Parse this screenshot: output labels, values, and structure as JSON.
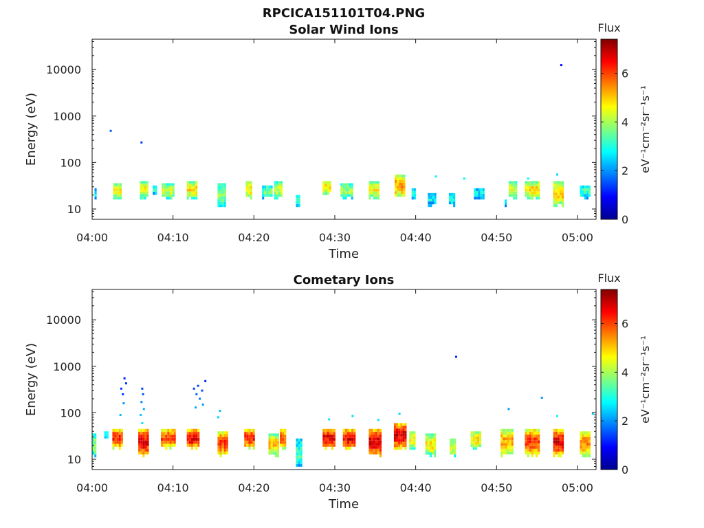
{
  "figure": {
    "filename": "RPCICA151101T04.PNG"
  },
  "colorbar": {
    "title": "Flux",
    "unit_label": "eV⁻¹cm⁻²sr⁻¹s⁻¹",
    "range": [
      0,
      7.4
    ],
    "ticks": [
      "0",
      "2",
      "4",
      "6"
    ],
    "colormap": "jet"
  },
  "chart_data": [
    {
      "type": "heatmap",
      "title": "Solar Wind Ions",
      "xlabel": "Time",
      "ylabel": "Energy (eV)",
      "x_ticks": [
        "04:00",
        "04:10",
        "04:20",
        "04:30",
        "04:40",
        "04:50",
        "05:00"
      ],
      "x_tick_minutes": [
        0,
        10,
        20,
        30,
        40,
        50,
        60
      ],
      "xlim_minutes": [
        0,
        62.3
      ],
      "y_scale": "log",
      "y_ticks": [
        "10",
        "100",
        "1000",
        "10000"
      ],
      "ylim": [
        6,
        45000
      ],
      "value_range": [
        0,
        7.4
      ],
      "grid": false,
      "events": [
        {
          "t": 0.3,
          "dur": 0.3,
          "e": [
            16,
            28
          ],
          "flux": 2.6
        },
        {
          "t": 2.6,
          "dur": 1.0,
          "e": [
            16,
            36
          ],
          "flux": 4.6
        },
        {
          "t": 5.9,
          "dur": 1.0,
          "e": [
            16,
            40
          ],
          "flux": 4.6
        },
        {
          "t": 7.5,
          "dur": 0.4,
          "e": [
            20,
            32
          ],
          "flux": 3.0
        },
        {
          "t": 8.6,
          "dur": 1.6,
          "e": [
            16,
            36
          ],
          "flux": 4.3
        },
        {
          "t": 11.7,
          "dur": 1.3,
          "e": [
            16,
            40
          ],
          "flux": 4.8
        },
        {
          "t": 15.5,
          "dur": 1.1,
          "e": [
            11,
            36
          ],
          "flux": 3.8
        },
        {
          "t": 19.0,
          "dur": 0.9,
          "e": [
            16,
            40
          ],
          "flux": 4.8
        },
        {
          "t": 21.0,
          "dur": 1.2,
          "e": [
            16,
            32
          ],
          "flux": 3.6
        },
        {
          "t": 22.5,
          "dur": 1.0,
          "e": [
            16,
            40
          ],
          "flux": 4.3
        },
        {
          "t": 25.2,
          "dur": 0.6,
          "e": [
            11,
            20
          ],
          "flux": 3.2
        },
        {
          "t": 28.5,
          "dur": 1.0,
          "e": [
            20,
            40
          ],
          "flux": 4.8
        },
        {
          "t": 30.7,
          "dur": 1.5,
          "e": [
            16,
            36
          ],
          "flux": 4.0
        },
        {
          "t": 34.2,
          "dur": 1.4,
          "e": [
            16,
            40
          ],
          "flux": 4.6
        },
        {
          "t": 37.4,
          "dur": 1.3,
          "e": [
            16,
            55
          ],
          "flux": 5.3
        },
        {
          "t": 39.5,
          "dur": 0.5,
          "e": [
            16,
            28
          ],
          "flux": 3.4
        },
        {
          "t": 41.5,
          "dur": 1.0,
          "e": [
            11,
            22
          ],
          "flux": 2.7
        },
        {
          "t": 44.1,
          "dur": 0.7,
          "e": [
            11,
            22
          ],
          "flux": 2.7
        },
        {
          "t": 47.2,
          "dur": 1.3,
          "e": [
            16,
            28
          ],
          "flux": 2.8
        },
        {
          "t": 51.0,
          "dur": 0.3,
          "e": [
            11,
            16
          ],
          "flux": 2.6
        },
        {
          "t": 51.5,
          "dur": 1.0,
          "e": [
            16,
            40
          ],
          "flux": 4.4
        },
        {
          "t": 53.5,
          "dur": 1.8,
          "e": [
            16,
            40
          ],
          "flux": 4.8
        },
        {
          "t": 57.0,
          "dur": 1.4,
          "e": [
            11,
            40
          ],
          "flux": 5.0
        },
        {
          "t": 60.3,
          "dur": 1.2,
          "e": [
            16,
            32
          ],
          "flux": 3.2
        }
      ],
      "points": [
        {
          "t": 2.3,
          "e": 480,
          "flux": 1.6
        },
        {
          "t": 6.1,
          "e": 270,
          "flux": 1.3
        },
        {
          "t": 58.0,
          "e": 12500,
          "flux": 0.9
        },
        {
          "t": 57.5,
          "e": 55,
          "flux": 2.5
        },
        {
          "t": 42.5,
          "e": 50,
          "flux": 2.7
        },
        {
          "t": 46.0,
          "e": 45,
          "flux": 2.7
        },
        {
          "t": 53.9,
          "e": 45,
          "flux": 2.8
        }
      ]
    },
    {
      "type": "heatmap",
      "title": "Cometary Ions",
      "xlabel": "Time",
      "ylabel": "Energy (eV)",
      "x_ticks": [
        "04:00",
        "04:10",
        "04:20",
        "04:30",
        "04:40",
        "04:50",
        "05:00"
      ],
      "x_tick_minutes": [
        0,
        10,
        20,
        30,
        40,
        50,
        60
      ],
      "xlim_minutes": [
        0,
        62.3
      ],
      "y_scale": "log",
      "y_ticks": [
        "10",
        "100",
        "1000",
        "10000"
      ],
      "ylim": [
        6,
        45000
      ],
      "value_range": [
        0,
        7.4
      ],
      "grid": false,
      "events": [
        {
          "t": 0.0,
          "dur": 0.6,
          "e": [
            11,
            36
          ],
          "flux": 3.8
        },
        {
          "t": 1.5,
          "dur": 0.4,
          "e": [
            28,
            40
          ],
          "flux": 3.0
        },
        {
          "t": 2.5,
          "dur": 1.3,
          "e": [
            16,
            45
          ],
          "flux": 6.3
        },
        {
          "t": 5.7,
          "dur": 1.4,
          "e": [
            11,
            45
          ],
          "flux": 6.6
        },
        {
          "t": 8.5,
          "dur": 1.8,
          "e": [
            16,
            45
          ],
          "flux": 6.1
        },
        {
          "t": 11.7,
          "dur": 1.6,
          "e": [
            16,
            45
          ],
          "flux": 6.6
        },
        {
          "t": 15.5,
          "dur": 1.4,
          "e": [
            11,
            40
          ],
          "flux": 6.1
        },
        {
          "t": 18.8,
          "dur": 1.4,
          "e": [
            16,
            45
          ],
          "flux": 6.3
        },
        {
          "t": 21.8,
          "dur": 1.2,
          "e": [
            11,
            36
          ],
          "flux": 5.0
        },
        {
          "t": 23.2,
          "dur": 0.7,
          "e": [
            16,
            45
          ],
          "flux": 5.8
        },
        {
          "t": 25.2,
          "dur": 0.7,
          "e": [
            6,
            28
          ],
          "flux": 3.2
        },
        {
          "t": 28.5,
          "dur": 1.5,
          "e": [
            16,
            45
          ],
          "flux": 6.6
        },
        {
          "t": 31.0,
          "dur": 1.7,
          "e": [
            16,
            45
          ],
          "flux": 6.6
        },
        {
          "t": 34.2,
          "dur": 1.6,
          "e": [
            11,
            45
          ],
          "flux": 6.8
        },
        {
          "t": 37.3,
          "dur": 1.6,
          "e": [
            16,
            60
          ],
          "flux": 6.8
        },
        {
          "t": 39.2,
          "dur": 0.7,
          "e": [
            16,
            40
          ],
          "flux": 4.6
        },
        {
          "t": 41.2,
          "dur": 1.3,
          "e": [
            11,
            36
          ],
          "flux": 4.7
        },
        {
          "t": 44.2,
          "dur": 0.8,
          "e": [
            11,
            28
          ],
          "flux": 4.5
        },
        {
          "t": 46.8,
          "dur": 1.4,
          "e": [
            16,
            40
          ],
          "flux": 4.8
        },
        {
          "t": 50.5,
          "dur": 1.6,
          "e": [
            11,
            45
          ],
          "flux": 5.3
        },
        {
          "t": 53.5,
          "dur": 1.8,
          "e": [
            11,
            45
          ],
          "flux": 6.1
        },
        {
          "t": 57.0,
          "dur": 1.2,
          "e": [
            11,
            45
          ],
          "flux": 6.6
        },
        {
          "t": 60.3,
          "dur": 1.3,
          "e": [
            11,
            40
          ],
          "flux": 5.5
        }
      ],
      "points": [
        {
          "t": 3.6,
          "e": 330,
          "flux": 1.3
        },
        {
          "t": 3.8,
          "e": 250,
          "flux": 1.3
        },
        {
          "t": 4.0,
          "e": 550,
          "flux": 1.1
        },
        {
          "t": 4.2,
          "e": 430,
          "flux": 1.3
        },
        {
          "t": 3.9,
          "e": 160,
          "flux": 2.0
        },
        {
          "t": 3.5,
          "e": 90,
          "flux": 2.3
        },
        {
          "t": 6.2,
          "e": 330,
          "flux": 1.4
        },
        {
          "t": 6.3,
          "e": 250,
          "flux": 1.6
        },
        {
          "t": 6.1,
          "e": 170,
          "flux": 1.9
        },
        {
          "t": 6.4,
          "e": 120,
          "flux": 2.2
        },
        {
          "t": 6.0,
          "e": 90,
          "flux": 2.4
        },
        {
          "t": 6.2,
          "e": 60,
          "flux": 2.6
        },
        {
          "t": 12.6,
          "e": 330,
          "flux": 1.4
        },
        {
          "t": 13.1,
          "e": 380,
          "flux": 1.4
        },
        {
          "t": 13.6,
          "e": 300,
          "flux": 1.5
        },
        {
          "t": 14.0,
          "e": 480,
          "flux": 1.2
        },
        {
          "t": 12.9,
          "e": 250,
          "flux": 1.7
        },
        {
          "t": 13.3,
          "e": 200,
          "flux": 1.8
        },
        {
          "t": 13.7,
          "e": 150,
          "flux": 2.0
        },
        {
          "t": 12.8,
          "e": 130,
          "flux": 2.1
        },
        {
          "t": 15.8,
          "e": 110,
          "flux": 2.3
        },
        {
          "t": 15.6,
          "e": 80,
          "flux": 2.5
        },
        {
          "t": 29.3,
          "e": 72,
          "flux": 2.6
        },
        {
          "t": 32.2,
          "e": 85,
          "flux": 2.5
        },
        {
          "t": 35.4,
          "e": 70,
          "flux": 2.6
        },
        {
          "t": 38.0,
          "e": 95,
          "flux": 2.5
        },
        {
          "t": 45.0,
          "e": 1600,
          "flux": 1.2
        },
        {
          "t": 51.5,
          "e": 120,
          "flux": 2.0
        },
        {
          "t": 55.6,
          "e": 210,
          "flux": 2.0
        },
        {
          "t": 57.5,
          "e": 85,
          "flux": 2.7
        },
        {
          "t": 61.9,
          "e": 95,
          "flux": 2.4
        }
      ]
    }
  ]
}
